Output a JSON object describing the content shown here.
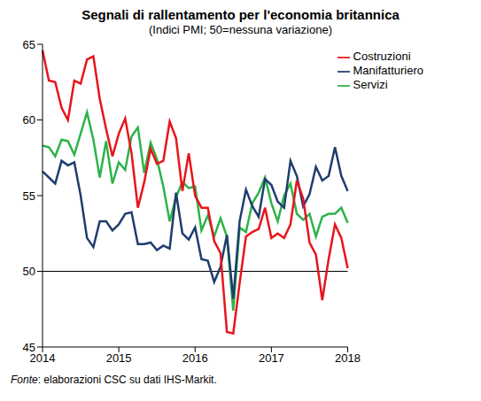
{
  "chart_data": {
    "type": "line",
    "title": "Segnali di rallentamento per l'economia britannica",
    "subtitle": "(Indici PMI; 50=nessuna variazione)",
    "source": "Fonte: elaborazioni CSC su dati IHS-Markit.",
    "categories": [
      "2014",
      null,
      null,
      null,
      null,
      null,
      null,
      null,
      null,
      null,
      null,
      null,
      "2015",
      null,
      null,
      null,
      null,
      null,
      null,
      null,
      null,
      null,
      null,
      null,
      "2016",
      null,
      null,
      null,
      null,
      null,
      null,
      null,
      null,
      null,
      null,
      null,
      "2017",
      null,
      null,
      null,
      null,
      null,
      null,
      null,
      null,
      null,
      null,
      null,
      "2018"
    ],
    "series": [
      {
        "name": "Servizi",
        "color": "#2db34a",
        "values": [
          58.3,
          58.2,
          57.6,
          58.7,
          58.6,
          57.7,
          59.1,
          60.5,
          58.7,
          56.2,
          58.6,
          55.8,
          57.2,
          56.7,
          58.9,
          59.5,
          56.5,
          58.5,
          57.4,
          55.6,
          53.3,
          54.9,
          55.9,
          55.5,
          55.6,
          52.7,
          53.7,
          52.3,
          53.5,
          52.3,
          47.4,
          52.9,
          52.6,
          54.5,
          55.2,
          56.2,
          54.5,
          53.3,
          55.0,
          55.8,
          53.8,
          53.4,
          53.8,
          52.3,
          53.6,
          53.8,
          53.8,
          54.2,
          53.2
        ]
      },
      {
        "name": "Manifatturiero",
        "color": "#1f3d6e",
        "values": [
          56.6,
          56.2,
          55.8,
          57.3,
          57.0,
          57.2,
          55.0,
          52.2,
          51.6,
          53.3,
          53.3,
          52.7,
          53.1,
          53.8,
          53.9,
          51.8,
          51.8,
          51.9,
          51.4,
          51.7,
          51.5,
          55.2,
          52.5,
          52.1,
          52.9,
          50.8,
          50.7,
          49.3,
          50.3,
          52.4,
          48.2,
          53.3,
          55.4,
          54.3,
          53.6,
          56.1,
          55.7,
          54.6,
          54.2,
          57.3,
          56.3,
          54.3,
          55.1,
          56.9,
          56.0,
          56.3,
          58.2,
          56.3,
          55.3
        ]
      },
      {
        "name": "Costruzioni",
        "color": "#e8141b",
        "values": [
          64.6,
          62.6,
          62.5,
          60.8,
          60.0,
          62.6,
          62.4,
          64.0,
          64.2,
          61.4,
          59.4,
          57.6,
          59.1,
          60.1,
          57.8,
          54.2,
          55.9,
          58.1,
          57.1,
          57.3,
          59.9,
          58.8,
          55.3,
          57.8,
          55.0,
          54.2,
          54.2,
          52.0,
          51.2,
          46.0,
          45.9,
          49.2,
          52.3,
          52.6,
          52.8,
          54.2,
          52.2,
          52.5,
          52.2,
          53.1,
          56.0,
          54.8,
          51.9,
          51.1,
          48.1,
          50.8,
          53.1,
          52.2,
          50.2
        ]
      }
    ],
    "ylim": [
      45,
      65
    ],
    "yticks": [
      45,
      50,
      55,
      60,
      65
    ],
    "reference_line": 50,
    "grid": false,
    "legend": "top right"
  }
}
